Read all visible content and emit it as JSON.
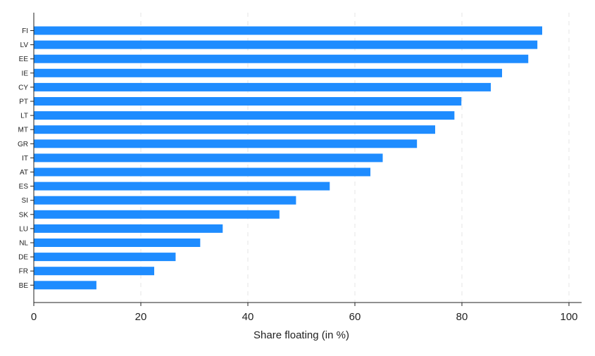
{
  "chart_data": {
    "type": "bar",
    "orientation": "horizontal",
    "categories": [
      "FI",
      "LV",
      "EE",
      "IE",
      "CY",
      "PT",
      "LT",
      "MT",
      "GR",
      "IT",
      "AT",
      "ES",
      "SI",
      "SK",
      "LU",
      "NL",
      "DE",
      "FR",
      "BE"
    ],
    "values": [
      95.0,
      94.1,
      92.4,
      87.5,
      85.4,
      79.9,
      78.6,
      75.0,
      71.6,
      65.2,
      62.9,
      55.3,
      49.0,
      45.9,
      35.3,
      31.1,
      26.5,
      22.5,
      11.7
    ],
    "xlabel": "Share floating (in %)",
    "xlim": [
      0,
      100
    ],
    "xticks": [
      "0",
      "20",
      "40",
      "60",
      "80",
      "100"
    ],
    "bar_color": "#1e8cff",
    "grid": true
  }
}
